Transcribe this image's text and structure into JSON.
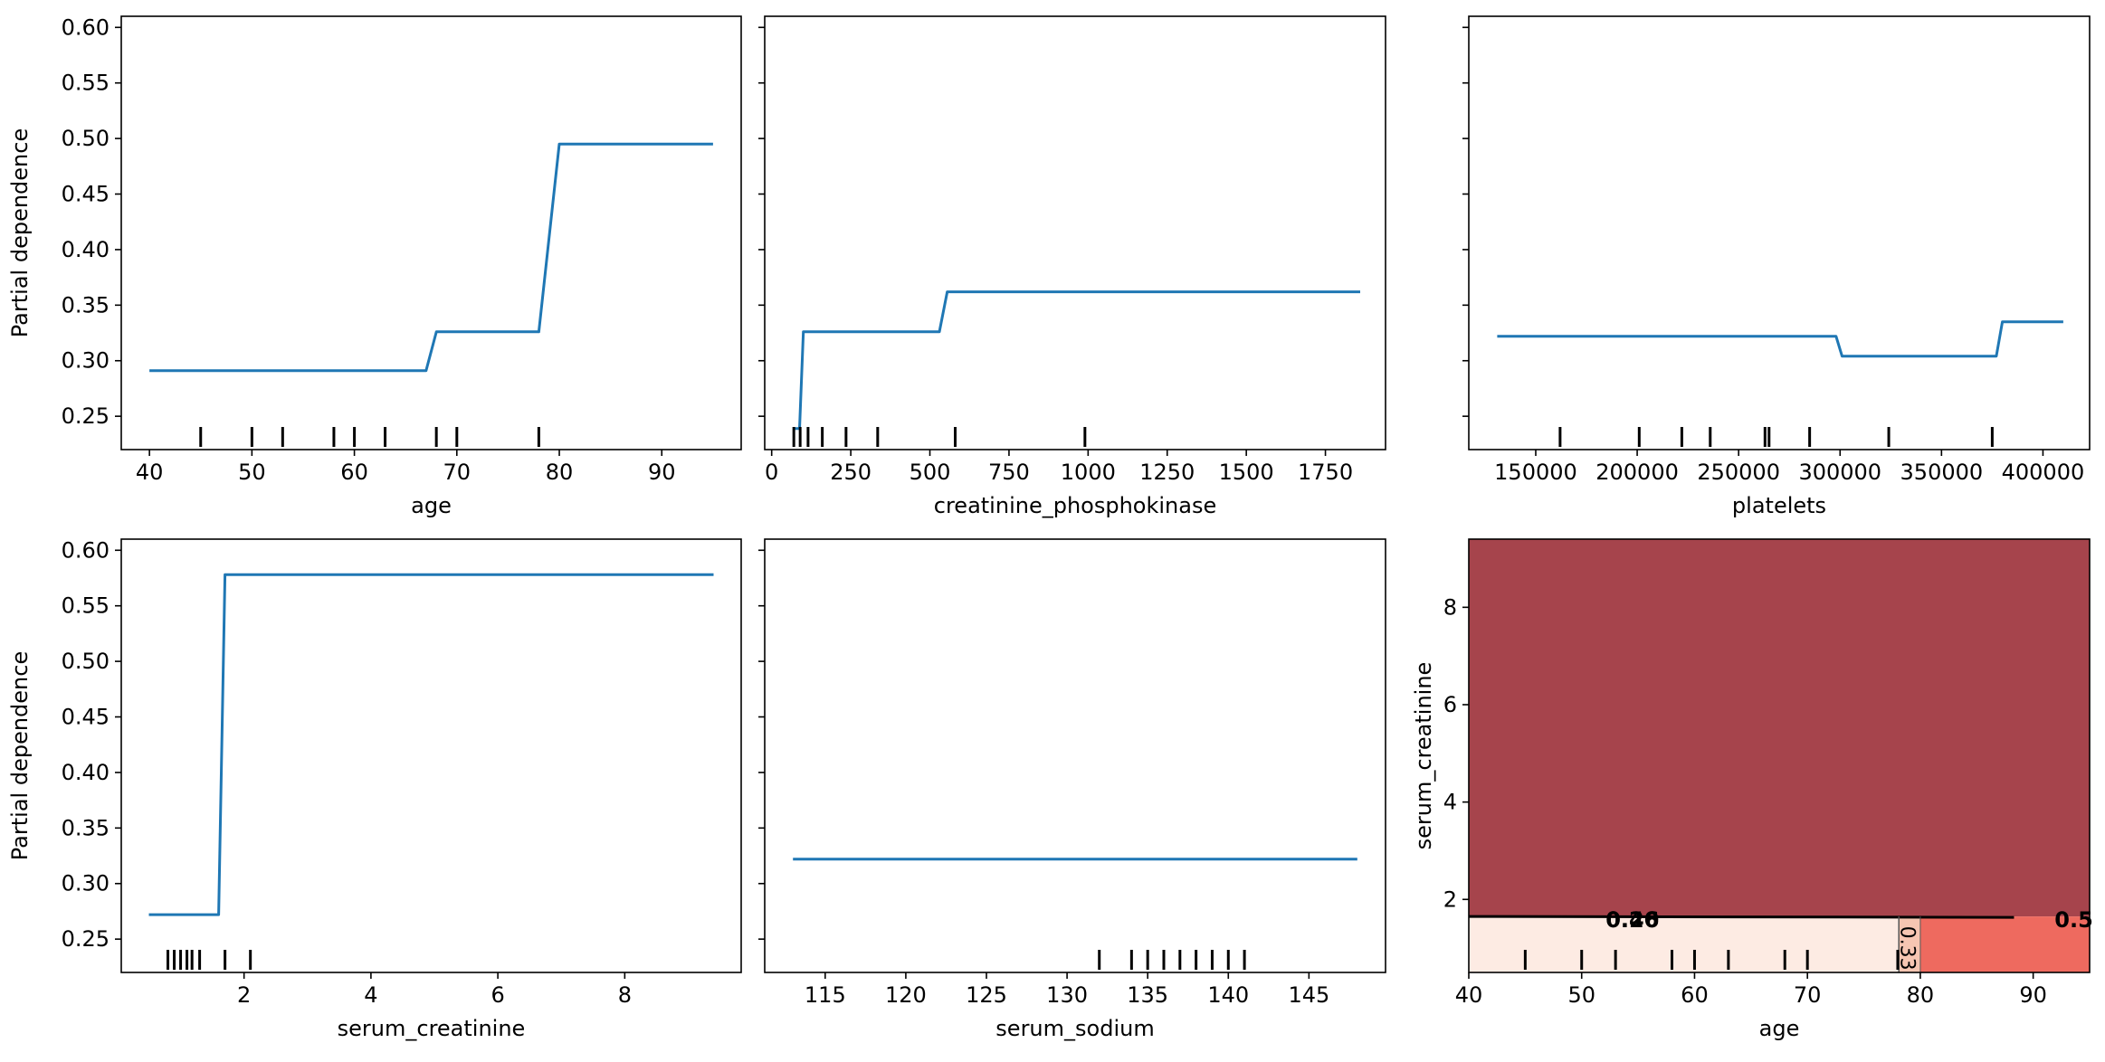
{
  "colors": {
    "line": "#1f77b4",
    "rug": "#000000",
    "heat_dark": "#a6444c",
    "heat_mid": "#ee6a5f",
    "heat_light": "#fdebe3",
    "heat_pale": "#f6c6b2"
  },
  "chart_data": [
    {
      "id": "pd_age",
      "type": "line",
      "xlabel": "age",
      "ylabel": "Partial dependence",
      "xlim": [
        37.25,
        97.75
      ],
      "ylim": [
        0.22,
        0.61
      ],
      "xticks": [
        40,
        50,
        60,
        70,
        80,
        90
      ],
      "xtick_labels": [
        "40",
        "50",
        "60",
        "70",
        "80",
        "90"
      ],
      "yticks": [
        0.25,
        0.3,
        0.35,
        0.4,
        0.45,
        0.5,
        0.55,
        0.6
      ],
      "ytick_labels": [
        "0.25",
        "0.30",
        "0.35",
        "0.40",
        "0.45",
        "0.50",
        "0.55",
        "0.60"
      ],
      "show_ytick_labels": true,
      "series": [
        {
          "name": "partial dependence",
          "x": [
            40,
            67,
            68,
            78,
            80,
            95
          ],
          "y": [
            0.291,
            0.291,
            0.326,
            0.326,
            0.495,
            0.495
          ]
        }
      ],
      "deciles": [
        45,
        50,
        53,
        58,
        60,
        63,
        68,
        70,
        78
      ]
    },
    {
      "id": "pd_cpk",
      "type": "line",
      "xlabel": "creatinine_phosphokinase",
      "ylabel": "",
      "xlim": [
        -22,
        1940
      ],
      "ylim": [
        0.22,
        0.61
      ],
      "xticks": [
        0,
        250,
        500,
        750,
        1000,
        1250,
        1500,
        1750
      ],
      "xtick_labels": [
        "0",
        "250",
        "500",
        "750",
        "1000",
        "1250",
        "1500",
        "1750"
      ],
      "yticks": [
        0.25,
        0.3,
        0.35,
        0.4,
        0.45,
        0.5,
        0.55,
        0.6
      ],
      "ytick_labels": [
        "0.25",
        "0.30",
        "0.35",
        "0.40",
        "0.45",
        "0.50",
        "0.55",
        "0.60"
      ],
      "show_ytick_labels": false,
      "series": [
        {
          "name": "partial dependence",
          "x": [
            70,
            88,
            100,
            530,
            555,
            1860
          ],
          "y": [
            0.239,
            0.239,
            0.326,
            0.326,
            0.362,
            0.362
          ]
        }
      ],
      "deciles": [
        70,
        90,
        115,
        160,
        235,
        335,
        580,
        990
      ]
    },
    {
      "id": "pd_platelets",
      "type": "line",
      "xlabel": "platelets",
      "ylabel": "",
      "xlim": [
        117000,
        423000
      ],
      "ylim": [
        0.22,
        0.61
      ],
      "xticks": [
        150000,
        200000,
        250000,
        300000,
        350000,
        400000
      ],
      "xtick_labels": [
        "150000",
        "200000",
        "250000",
        "300000",
        "350000",
        "400000"
      ],
      "yticks": [
        0.25,
        0.3,
        0.35,
        0.4,
        0.45,
        0.5,
        0.55,
        0.6
      ],
      "ytick_labels": [
        "0.25",
        "0.30",
        "0.35",
        "0.40",
        "0.45",
        "0.50",
        "0.55",
        "0.60"
      ],
      "show_ytick_labels": false,
      "series": [
        {
          "name": "partial dependence",
          "x": [
            131000,
            298000,
            301000,
            377000,
            380000,
            410000
          ],
          "y": [
            0.322,
            0.322,
            0.304,
            0.304,
            0.335,
            0.335
          ]
        }
      ],
      "deciles": [
        162000,
        201000,
        222000,
        236000,
        263000,
        265000,
        285000,
        324000,
        375000
      ]
    },
    {
      "id": "pd_serum_creatinine",
      "type": "line",
      "xlabel": "serum_creatinine",
      "ylabel": "Partial dependence",
      "xlim": [
        0.065,
        9.835
      ],
      "ylim": [
        0.22,
        0.61
      ],
      "xticks": [
        2,
        4,
        6,
        8
      ],
      "xtick_labels": [
        "2",
        "4",
        "6",
        "8"
      ],
      "yticks": [
        0.25,
        0.3,
        0.35,
        0.4,
        0.45,
        0.5,
        0.55,
        0.6
      ],
      "ytick_labels": [
        "0.25",
        "0.30",
        "0.35",
        "0.40",
        "0.45",
        "0.50",
        "0.55",
        "0.60"
      ],
      "show_ytick_labels": true,
      "series": [
        {
          "name": "partial dependence",
          "x": [
            0.5,
            1.6,
            1.7,
            9.4
          ],
          "y": [
            0.272,
            0.272,
            0.578,
            0.578
          ]
        }
      ],
      "deciles": [
        0.8,
        0.9,
        1.0,
        1.1,
        1.18,
        1.3,
        1.7,
        2.1
      ]
    },
    {
      "id": "pd_serum_sodium",
      "type": "line",
      "xlabel": "serum_sodium",
      "ylabel": "",
      "xlim": [
        111.25,
        149.75
      ],
      "ylim": [
        0.22,
        0.61
      ],
      "xticks": [
        115,
        120,
        125,
        130,
        135,
        140,
        145
      ],
      "xtick_labels": [
        "115",
        "120",
        "125",
        "130",
        "135",
        "140",
        "145"
      ],
      "yticks": [
        0.25,
        0.3,
        0.35,
        0.4,
        0.45,
        0.5,
        0.55,
        0.6
      ],
      "ytick_labels": [
        "0.25",
        "0.30",
        "0.35",
        "0.40",
        "0.45",
        "0.50",
        "0.55",
        "0.60"
      ],
      "show_ytick_labels": false,
      "series": [
        {
          "name": "partial dependence",
          "x": [
            113,
            148
          ],
          "y": [
            0.322,
            0.322
          ]
        }
      ],
      "deciles": [
        132,
        134,
        135,
        136,
        137,
        138,
        139,
        140,
        141
      ]
    },
    {
      "id": "pd_2way",
      "type": "heatmap",
      "xlabel": "age",
      "ylabel": "serum_creatinine",
      "xlim": [
        40,
        95
      ],
      "ylim": [
        0.5,
        9.4
      ],
      "xticks": [
        40,
        50,
        60,
        70,
        80,
        90
      ],
      "xtick_labels": [
        "40",
        "50",
        "60",
        "70",
        "80",
        "90"
      ],
      "yticks": [
        2,
        4,
        6,
        8
      ],
      "ytick_labels": [
        "2",
        "4",
        "6",
        "8"
      ],
      "regions": [
        {
          "x": [
            40,
            95
          ],
          "y": [
            1.65,
            9.4
          ],
          "level": "dark"
        },
        {
          "x": [
            40,
            78.1
          ],
          "y": [
            0.5,
            1.65
          ],
          "level": "light"
        },
        {
          "x": [
            78.1,
            80
          ],
          "y": [
            0.5,
            1.65
          ],
          "level": "pale"
        },
        {
          "x": [
            80,
            95
          ],
          "y": [
            0.5,
            1.65
          ],
          "level": "mid"
        }
      ],
      "contour_y": 1.65,
      "contour_labels": [
        {
          "text": "0.46",
          "x": 54.5,
          "y": 1.6,
          "rotate": 0
        },
        {
          "text": "0.20",
          "x": 54.5,
          "y": 1.6,
          "rotate": 0
        },
        {
          "text": "0.5",
          "x": 93.6,
          "y": 1.6,
          "rotate": 0
        },
        {
          "text": "0.33",
          "x": 79.0,
          "y": 1.0,
          "rotate": 90
        }
      ],
      "deciles": [
        45,
        50,
        53,
        58,
        60,
        63,
        68,
        70,
        78
      ]
    }
  ]
}
